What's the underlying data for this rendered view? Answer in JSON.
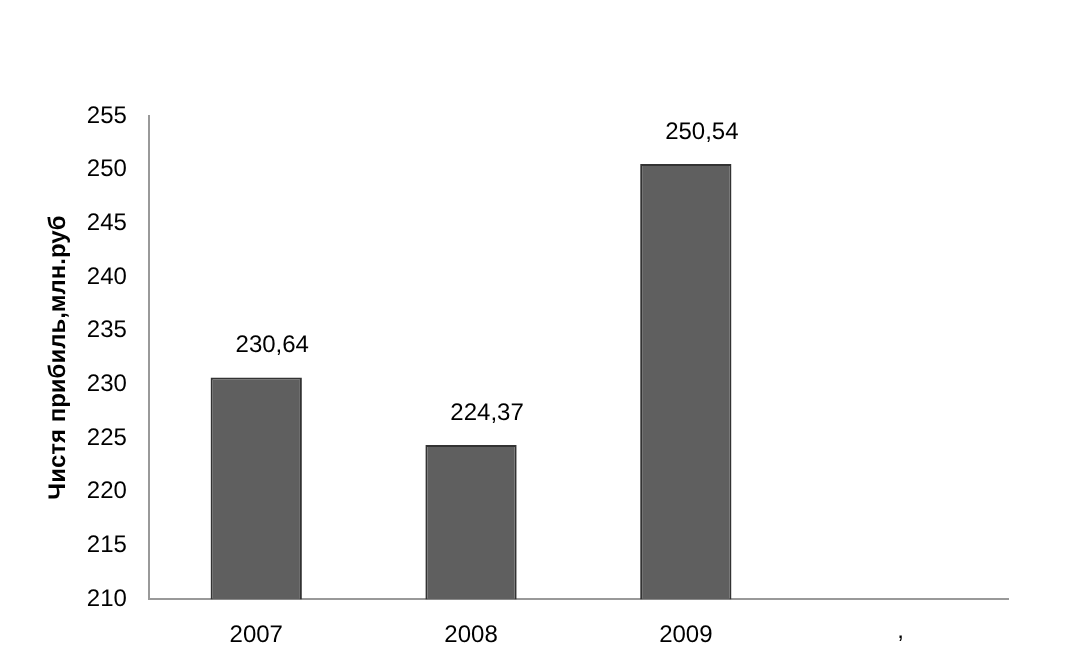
{
  "chart_data": {
    "type": "bar",
    "ylabel": "Чистя прибиль,млн.руб",
    "categories": [
      "2007",
      "2008",
      "2009",
      null
    ],
    "annotations": [
      ","
    ],
    "values": [
      230.64,
      224.37,
      250.54,
      null
    ],
    "value_labels": [
      "230,64",
      "224,37",
      "250,54",
      null
    ],
    "color": "#5f5f5f",
    "ylim": [
      210,
      255
    ],
    "yticks": [
      210,
      215,
      220,
      225,
      230,
      235,
      240,
      245,
      250,
      255
    ],
    "grid": false,
    "legend": false
  }
}
